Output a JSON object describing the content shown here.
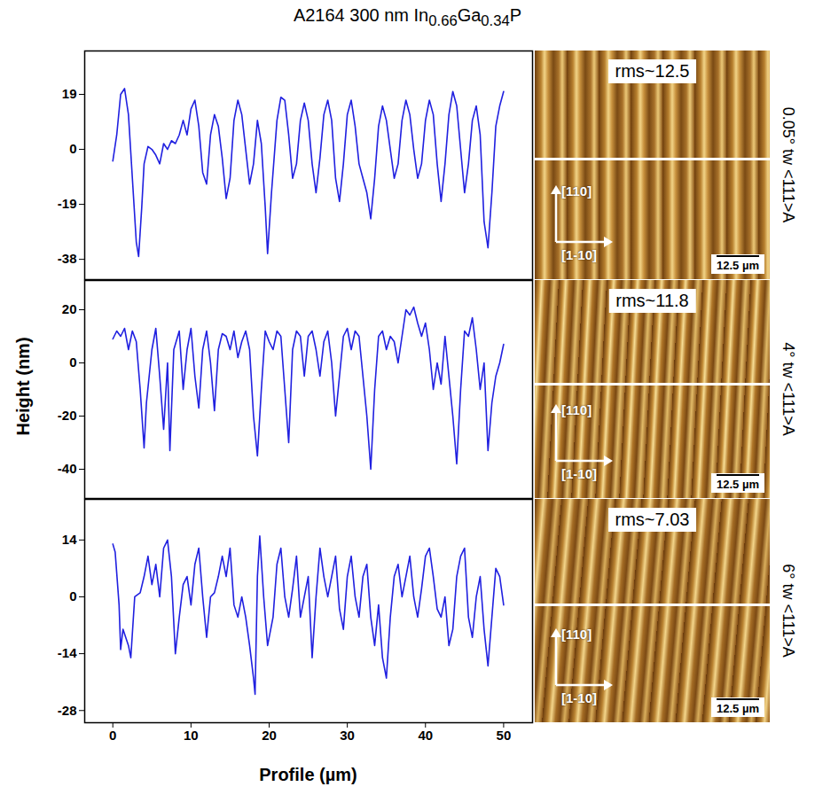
{
  "chart_data": [
    {
      "type": "line",
      "title": "A2164 300 nm In0.66Ga0.34P",
      "color": "#2020e0",
      "tick_labels": "y",
      "xlim": [
        -3.6,
        53.7
      ],
      "xticks": [
        0,
        10,
        20,
        30,
        40,
        50
      ],
      "ylim": [
        -45,
        34
      ],
      "yticks": [
        19,
        0,
        -19,
        -38
      ],
      "x": [
        0,
        0.5,
        1,
        1.5,
        2,
        2.5,
        3,
        3.3,
        3.7,
        4,
        4.5,
        5,
        5.5,
        6,
        6.5,
        7,
        7.5,
        8,
        8.5,
        9,
        9.5,
        10,
        10.5,
        11,
        11.5,
        12,
        12.5,
        13,
        13.5,
        14,
        14.5,
        15,
        15.5,
        16,
        16.5,
        17,
        17.5,
        18,
        18.5,
        19,
        19.5,
        19.8,
        20.3,
        21,
        21.5,
        22,
        22.5,
        23,
        23.5,
        24,
        24.5,
        25,
        25.5,
        26,
        26.5,
        27,
        27.5,
        28,
        28.5,
        29,
        29.5,
        30,
        30.5,
        31,
        31.5,
        32,
        32.5,
        33,
        33.5,
        34,
        34.5,
        35,
        35.5,
        36,
        36.5,
        37,
        37.5,
        38,
        38.5,
        39,
        39.5,
        40,
        40.5,
        41,
        41.5,
        42,
        42.5,
        43,
        43.5,
        44,
        44.5,
        45,
        45.5,
        46,
        46.5,
        47,
        47.5,
        48,
        48.5,
        49,
        49.5,
        50
      ],
      "values": [
        -4,
        5,
        19,
        21,
        12,
        -10,
        -32,
        -37,
        -20,
        -5,
        1,
        0,
        -2,
        -5,
        2,
        0,
        3,
        2,
        5,
        10,
        5,
        14,
        17,
        8,
        -8,
        -12,
        5,
        12,
        8,
        -3,
        -17,
        -10,
        10,
        17,
        12,
        0,
        -12,
        -5,
        10,
        2,
        -20,
        -36,
        -15,
        10,
        18,
        17,
        5,
        -10,
        -5,
        10,
        16,
        10,
        -5,
        -15,
        -3,
        12,
        17,
        10,
        -10,
        -18,
        -5,
        12,
        17,
        8,
        -5,
        -10,
        -15,
        -24,
        -10,
        8,
        15,
        10,
        0,
        -10,
        -5,
        10,
        17,
        12,
        0,
        -10,
        -5,
        10,
        17,
        12,
        -5,
        -18,
        -5,
        12,
        20,
        15,
        0,
        -15,
        -5,
        10,
        15,
        5,
        -25,
        -34,
        -15,
        8,
        15,
        20
      ],
      "image_labels": {
        "rms": "rms~12.5",
        "directions": [
          "[110]",
          "[1-10]"
        ],
        "scale_bar": "12.5 µm",
        "sample": "0.05° tw <111>A"
      }
    },
    {
      "type": "line",
      "ylabel": "Height (nm)",
      "color": "#2020e0",
      "tick_labels": "y",
      "xlim": [
        -3.6,
        53.7
      ],
      "xticks": [
        0,
        10,
        20,
        30,
        40,
        50
      ],
      "ylim": [
        -51,
        31
      ],
      "yticks": [
        20,
        0,
        -20,
        -40
      ],
      "x": [
        0,
        0.5,
        1,
        1.5,
        2,
        2.5,
        3,
        3.5,
        4,
        4.3,
        5,
        5.5,
        6,
        6.5,
        7,
        7.3,
        7.8,
        8.5,
        9,
        9.5,
        10,
        10.5,
        11,
        11.5,
        12,
        12.5,
        13,
        13.5,
        14,
        14.5,
        15,
        15.5,
        16,
        16.5,
        17,
        17.5,
        18,
        18.5,
        19,
        19.5,
        20,
        20.5,
        21,
        21.5,
        22,
        22.5,
        23,
        23.5,
        24,
        24.5,
        25,
        25.5,
        26,
        26.5,
        27,
        27.5,
        28,
        28.5,
        29,
        29.5,
        30,
        30.5,
        31,
        31.5,
        32,
        32.5,
        33,
        33.5,
        34,
        34.5,
        35,
        35.5,
        36,
        36.5,
        37,
        37.5,
        38,
        38.5,
        39,
        39.5,
        40,
        40.5,
        41,
        41.5,
        42,
        42.5,
        43,
        43.5,
        44,
        44.5,
        45,
        45.5,
        46,
        46.5,
        47,
        47.5,
        48,
        48.5,
        49,
        49.5,
        50
      ],
      "values": [
        9,
        12,
        10,
        13,
        5,
        12,
        8,
        -10,
        -32,
        -15,
        5,
        13,
        -5,
        -25,
        0,
        -33,
        5,
        12,
        -10,
        5,
        13,
        -5,
        -17,
        5,
        12,
        0,
        -18,
        5,
        11,
        10,
        5,
        12,
        2,
        8,
        12,
        5,
        -20,
        -35,
        -10,
        12,
        8,
        5,
        12,
        10,
        -10,
        -30,
        5,
        12,
        10,
        -5,
        10,
        12,
        5,
        -5,
        8,
        12,
        0,
        -20,
        -5,
        10,
        13,
        5,
        12,
        10,
        -5,
        -20,
        -40,
        -10,
        10,
        12,
        5,
        10,
        8,
        0,
        10,
        20,
        18,
        21,
        15,
        10,
        15,
        5,
        -10,
        0,
        -8,
        10,
        -5,
        -20,
        -38,
        -10,
        12,
        10,
        17,
        5,
        -10,
        0,
        -33,
        -15,
        -5,
        0,
        7
      ],
      "image_labels": {
        "rms": "rms~11.8",
        "directions": [
          "[110]",
          "[1-10]"
        ],
        "scale_bar": "12.5 µm",
        "sample": "4° tw <111>A"
      }
    },
    {
      "type": "line",
      "xlabel": "Profile (µm)",
      "color": "#2020e0",
      "xlim": [
        -3.6,
        53.7
      ],
      "xticks": [
        0,
        10,
        20,
        30,
        40,
        50
      ],
      "ylim": [
        -31,
        24
      ],
      "yticks": [
        14,
        0,
        -14,
        -28
      ],
      "x": [
        0,
        0.3,
        0.8,
        1,
        1.3,
        2,
        2.3,
        2.8,
        3.5,
        4,
        4.5,
        5,
        5.5,
        6,
        6.5,
        7,
        7.5,
        8,
        8.5,
        9,
        9.5,
        10,
        10.5,
        11,
        11.5,
        12,
        12.5,
        13,
        13.5,
        14,
        14.5,
        15,
        15.5,
        16,
        16.5,
        17,
        17.5,
        18,
        18.2,
        18.5,
        18.8,
        19.3,
        19.8,
        20.5,
        21,
        21.5,
        22,
        22.5,
        23,
        23.5,
        24,
        24.5,
        25,
        25.5,
        26,
        26.5,
        27,
        27.5,
        28,
        28.5,
        29,
        29.5,
        30,
        30.5,
        31,
        31.5,
        32,
        32.5,
        33,
        33.5,
        34,
        34.5,
        35,
        35.5,
        36,
        36.5,
        37,
        37.5,
        38,
        38.5,
        39,
        39.5,
        40,
        40.5,
        41,
        41.5,
        42,
        42.5,
        43,
        43.5,
        44,
        44.5,
        45,
        45.5,
        46,
        46.5,
        47,
        47.5,
        48,
        48.5,
        49,
        49.5,
        50
      ],
      "values": [
        13,
        11,
        -2,
        -13,
        -8,
        -12,
        -15,
        0,
        1,
        5,
        10,
        3,
        8,
        0,
        12,
        14,
        5,
        -14,
        -5,
        3,
        5,
        -2,
        8,
        12,
        0,
        -10,
        0,
        1,
        5,
        10,
        5,
        12,
        -2,
        -5,
        0,
        -5,
        -12,
        -20,
        -24,
        5,
        15,
        0,
        -12,
        -5,
        8,
        12,
        0,
        -5,
        2,
        10,
        -5,
        0,
        5,
        -15,
        0,
        12,
        5,
        0,
        5,
        10,
        -3,
        -8,
        5,
        10,
        0,
        -5,
        5,
        8,
        -5,
        -12,
        -2,
        -15,
        -20,
        -5,
        5,
        8,
        0,
        5,
        10,
        0,
        -5,
        2,
        10,
        12,
        5,
        -3,
        -5,
        0,
        -12,
        -8,
        5,
        10,
        12,
        -5,
        -10,
        0,
        5,
        -8,
        -17,
        -5,
        7,
        5,
        -2
      ],
      "image_labels": {
        "rms": "rms~7.03",
        "directions": [
          "[110]",
          "[1-10]"
        ],
        "scale_bar": "12.5 µm",
        "sample": "6° tw <111>A"
      }
    }
  ]
}
